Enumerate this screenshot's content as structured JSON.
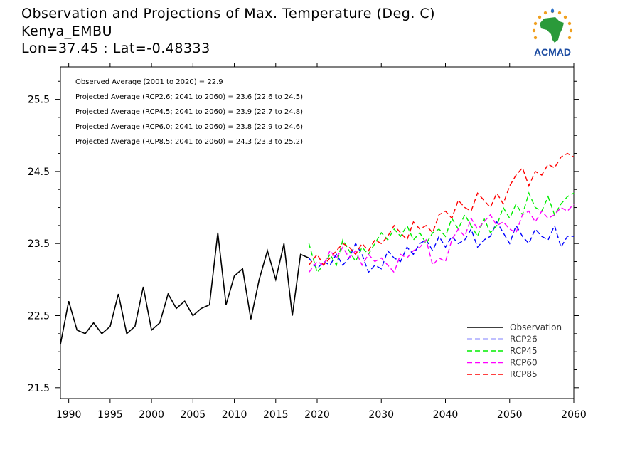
{
  "title": {
    "line1": "Observation and Projections of Max. Temperature (Deg. C)",
    "line2": "Kenya_EMBU",
    "line3": "Lon=37.45 : Lat=-0.48333"
  },
  "logo": {
    "text": "ACMAD",
    "icon": "africa-map-icon"
  },
  "chart_data": {
    "type": "line",
    "xlim": [
      1989,
      2060
    ],
    "ylim": [
      21.35,
      25.95
    ],
    "xticks": [
      1990,
      1995,
      2000,
      2005,
      2010,
      2015,
      2020,
      2030,
      2040,
      2050,
      2060
    ],
    "yticks": [
      21.5,
      22.5,
      23.5,
      24.5,
      25.5
    ],
    "ytick_labels": [
      "21.5",
      "22.5",
      "23.5",
      "24.5",
      "25.5"
    ],
    "annotations": [
      "Observed Average (2001 to 2020) = 22.9",
      "Projected Average (RCP2.6; 2041 to 2060) = 23.6 (22.6 to 24.5)",
      "Projected Average (RCP4.5; 2041 to 2060) = 23.9 (22.7 to 24.8)",
      "Projected Average (RCP6.0; 2041 to 2060) = 23.8 (22.9 to 24.6)",
      "Projected Average (RCP8.5; 2041 to 2060) = 24.3 (23.3 to 25.2)"
    ],
    "legend_position": "bottom-right",
    "series": [
      {
        "name": "Observation",
        "color": "#000000",
        "dashed": false,
        "x": [
          1989,
          1990,
          1991,
          1992,
          1993,
          1994,
          1995,
          1996,
          1997,
          1998,
          1999,
          2000,
          2001,
          2002,
          2003,
          2004,
          2005,
          2006,
          2007,
          2008,
          2009,
          2010,
          2011,
          2012,
          2013,
          2014,
          2015,
          2016,
          2017,
          2018,
          2019
        ],
        "y": [
          22.1,
          22.7,
          22.3,
          22.25,
          22.4,
          22.25,
          22.35,
          22.8,
          22.25,
          22.35,
          22.9,
          22.3,
          22.4,
          22.8,
          22.6,
          22.7,
          22.5,
          22.6,
          22.65,
          23.65,
          22.65,
          23.05,
          23.15,
          22.45,
          23.0,
          23.4,
          23.0,
          23.5,
          22.5,
          23.35,
          23.3
        ]
      },
      {
        "name": "RCP26",
        "color": "#0000ff",
        "dashed": true,
        "x": [
          2019,
          2020,
          2021,
          2022,
          2023,
          2024,
          2025,
          2026,
          2027,
          2028,
          2029,
          2030,
          2031,
          2032,
          2033,
          2034,
          2035,
          2036,
          2037,
          2038,
          2039,
          2040,
          2041,
          2042,
          2043,
          2044,
          2045,
          2046,
          2047,
          2048,
          2049,
          2050,
          2051,
          2052,
          2053,
          2054,
          2055,
          2056,
          2057,
          2058,
          2059,
          2060
        ],
        "y": [
          23.3,
          23.15,
          23.25,
          23.2,
          23.35,
          23.2,
          23.3,
          23.5,
          23.35,
          23.1,
          23.2,
          23.15,
          23.4,
          23.3,
          23.25,
          23.45,
          23.35,
          23.5,
          23.55,
          23.4,
          23.6,
          23.45,
          23.6,
          23.5,
          23.55,
          23.7,
          23.45,
          23.55,
          23.6,
          23.8,
          23.65,
          23.5,
          23.75,
          23.6,
          23.5,
          23.7,
          23.6,
          23.55,
          23.75,
          23.45,
          23.6,
          23.6
        ]
      },
      {
        "name": "RCP45",
        "color": "#00ee00",
        "dashed": true,
        "x": [
          2019,
          2020,
          2021,
          2022,
          2023,
          2024,
          2025,
          2026,
          2027,
          2028,
          2029,
          2030,
          2031,
          2032,
          2033,
          2034,
          2035,
          2036,
          2037,
          2038,
          2039,
          2040,
          2041,
          2042,
          2043,
          2044,
          2045,
          2046,
          2047,
          2048,
          2049,
          2050,
          2051,
          2052,
          2053,
          2054,
          2055,
          2056,
          2057,
          2058,
          2059,
          2060
        ],
        "y": [
          23.5,
          23.1,
          23.2,
          23.35,
          23.2,
          23.55,
          23.4,
          23.25,
          23.45,
          23.35,
          23.5,
          23.65,
          23.55,
          23.7,
          23.6,
          23.75,
          23.55,
          23.65,
          23.5,
          23.65,
          23.7,
          23.6,
          23.85,
          23.7,
          23.9,
          23.75,
          23.6,
          23.85,
          23.65,
          23.75,
          24.0,
          23.85,
          24.05,
          23.9,
          24.2,
          24.0,
          23.95,
          24.15,
          23.9,
          24.05,
          24.15,
          24.2
        ]
      },
      {
        "name": "RCP60",
        "color": "#ff00ff",
        "dashed": true,
        "x": [
          2019,
          2020,
          2021,
          2022,
          2023,
          2024,
          2025,
          2026,
          2027,
          2028,
          2029,
          2030,
          2031,
          2032,
          2033,
          2034,
          2035,
          2036,
          2037,
          2038,
          2039,
          2040,
          2041,
          2042,
          2043,
          2044,
          2045,
          2046,
          2047,
          2048,
          2049,
          2050,
          2051,
          2052,
          2053,
          2054,
          2055,
          2056,
          2057,
          2058,
          2059,
          2060
        ],
        "y": [
          23.1,
          23.25,
          23.2,
          23.4,
          23.3,
          23.45,
          23.3,
          23.4,
          23.2,
          23.35,
          23.25,
          23.3,
          23.2,
          23.1,
          23.35,
          23.3,
          23.4,
          23.45,
          23.55,
          23.2,
          23.3,
          23.25,
          23.55,
          23.7,
          23.6,
          23.85,
          23.7,
          23.8,
          23.9,
          23.75,
          23.8,
          23.7,
          23.65,
          23.9,
          23.95,
          23.8,
          23.95,
          23.85,
          23.9,
          24.0,
          23.95,
          24.05
        ]
      },
      {
        "name": "RCP85",
        "color": "#ff0000",
        "dashed": true,
        "x": [
          2019,
          2020,
          2021,
          2022,
          2023,
          2024,
          2025,
          2026,
          2027,
          2028,
          2029,
          2030,
          2031,
          2032,
          2033,
          2034,
          2035,
          2036,
          2037,
          2038,
          2039,
          2040,
          2041,
          2042,
          2043,
          2044,
          2045,
          2046,
          2047,
          2048,
          2049,
          2050,
          2051,
          2052,
          2053,
          2054,
          2055,
          2056,
          2057,
          2058,
          2059,
          2060
        ],
        "y": [
          23.2,
          23.35,
          23.2,
          23.3,
          23.4,
          23.5,
          23.45,
          23.35,
          23.5,
          23.4,
          23.55,
          23.5,
          23.6,
          23.75,
          23.65,
          23.55,
          23.8,
          23.7,
          23.75,
          23.65,
          23.9,
          23.95,
          23.85,
          24.1,
          24.0,
          23.95,
          24.2,
          24.1,
          24.0,
          24.2,
          24.05,
          24.3,
          24.45,
          24.55,
          24.3,
          24.5,
          24.45,
          24.6,
          24.55,
          24.7,
          24.75,
          24.7
        ]
      }
    ]
  }
}
